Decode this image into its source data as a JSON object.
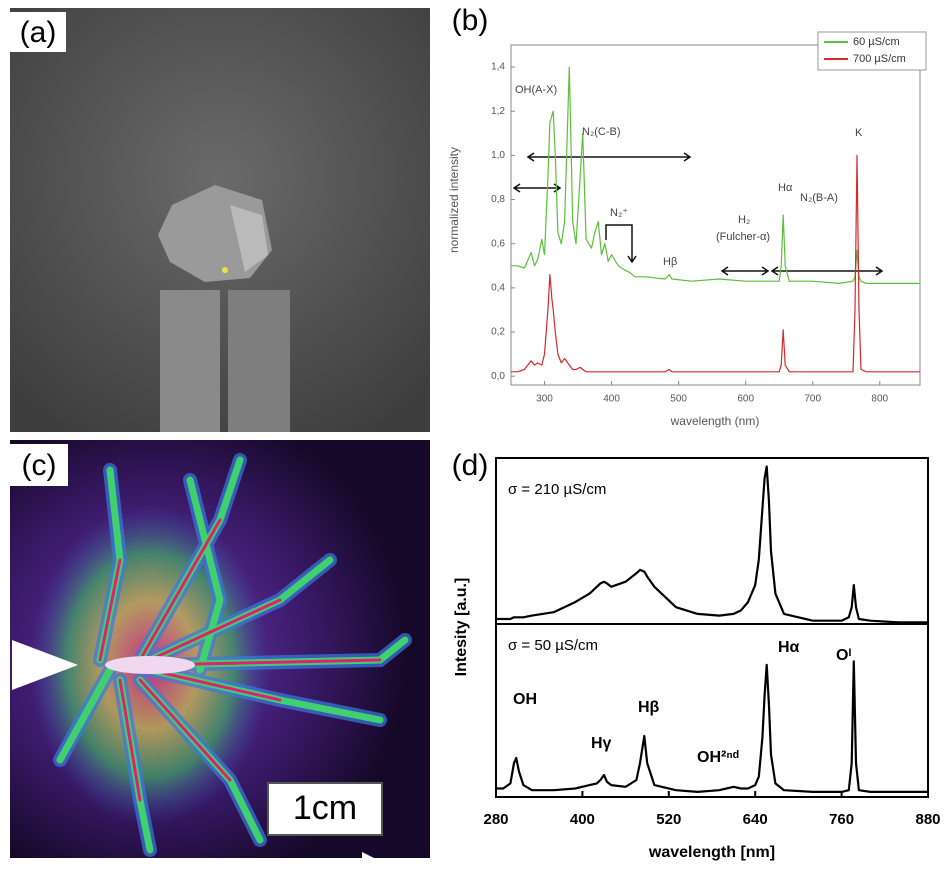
{
  "panels": {
    "a": "(a)",
    "b": "(b)",
    "c": "(c)",
    "d": "(d)"
  },
  "scale_bar": "1cm",
  "chart_data": [
    {
      "type": "line",
      "x_label": "wavelength (nm)",
      "y_label": "normalized intensity",
      "x": [
        250,
        260,
        270,
        280,
        285,
        290,
        296,
        300,
        305,
        308,
        311,
        313,
        316,
        320,
        325,
        330,
        337,
        342,
        347,
        353,
        357,
        362,
        370,
        375,
        380,
        385,
        390,
        395,
        400,
        410,
        420,
        427,
        435,
        450,
        480,
        486,
        490,
        520,
        560,
        600,
        640,
        650,
        653,
        656,
        659,
        665,
        700,
        740,
        760,
        763,
        766,
        769,
        772,
        780,
        820,
        860
      ],
      "series": [
        {
          "name": "60 µS/cm",
          "color": "#5cbf3a",
          "values": [
            0.5,
            0.5,
            0.49,
            0.56,
            0.5,
            0.53,
            0.62,
            0.55,
            0.9,
            1.15,
            1.18,
            1.2,
            1.0,
            0.65,
            0.6,
            0.7,
            1.4,
            0.7,
            0.6,
            0.9,
            1.1,
            0.62,
            0.58,
            0.65,
            0.7,
            0.55,
            0.6,
            0.52,
            0.55,
            0.5,
            0.48,
            0.47,
            0.45,
            0.45,
            0.44,
            0.46,
            0.44,
            0.43,
            0.44,
            0.43,
            0.43,
            0.43,
            0.5,
            0.73,
            0.5,
            0.43,
            0.43,
            0.42,
            0.43,
            0.45,
            0.57,
            0.45,
            0.43,
            0.42,
            0.42,
            0.42
          ]
        },
        {
          "name": "700 µS/cm",
          "color": "#d32b2b",
          "values": [
            0.02,
            0.02,
            0.03,
            0.07,
            0.05,
            0.06,
            0.05,
            0.1,
            0.3,
            0.46,
            0.35,
            0.3,
            0.2,
            0.1,
            0.06,
            0.08,
            0.05,
            0.03,
            0.03,
            0.04,
            0.03,
            0.02,
            0.02,
            0.02,
            0.02,
            0.02,
            0.02,
            0.02,
            0.02,
            0.02,
            0.02,
            0.02,
            0.02,
            0.02,
            0.02,
            0.03,
            0.02,
            0.02,
            0.02,
            0.02,
            0.02,
            0.02,
            0.05,
            0.21,
            0.05,
            0.02,
            0.02,
            0.02,
            0.02,
            0.3,
            1.0,
            0.3,
            0.03,
            0.02,
            0.02,
            0.02
          ]
        }
      ],
      "xlim": [
        250,
        860
      ],
      "ylim": [
        -0.04,
        1.5
      ],
      "xticks": [
        300,
        400,
        500,
        600,
        700,
        800
      ],
      "yticks": [
        {
          "value": 0,
          "label": "0,0"
        },
        {
          "value": 0.2,
          "label": "0,2"
        },
        {
          "value": 0.4,
          "label": "0,4"
        },
        {
          "value": 0.6,
          "label": "0,6"
        },
        {
          "value": 0.8,
          "label": "0,8"
        },
        {
          "value": 1,
          "label": "1,0"
        },
        {
          "value": 1.2,
          "label": "1,2"
        },
        {
          "value": 1.4,
          "label": "1,4"
        }
      ],
      "legend": "upper right",
      "annotations": [
        "OH(A-X)",
        "N₂(C-B)",
        "N₂⁺",
        "Hβ",
        "H₂",
        "(Fulcher-α)",
        "Hα",
        "N₂(B-A)",
        "K"
      ]
    },
    {
      "type": "line",
      "x_label": "wavelength [nm]",
      "y_label": "Intesity [a.u.]",
      "x": [
        280,
        290,
        300,
        305,
        308,
        312,
        318,
        330,
        360,
        390,
        410,
        420,
        425,
        430,
        434,
        440,
        460,
        475,
        480,
        486,
        490,
        500,
        530,
        560,
        590,
        610,
        620,
        630,
        640,
        645,
        650,
        653,
        656,
        659,
        662,
        668,
        680,
        720,
        760,
        770,
        774,
        777,
        780,
        784,
        800,
        840,
        880
      ],
      "series": [
        {
          "name": "σ = 210 µS/cm",
          "color": "#000000",
          "values": [
            1.05,
            1.05,
            1.05,
            1.06,
            1.06,
            1.06,
            1.06,
            1.07,
            1.09,
            1.15,
            1.2,
            1.24,
            1.26,
            1.27,
            1.26,
            1.24,
            1.27,
            1.32,
            1.34,
            1.33,
            1.3,
            1.24,
            1.12,
            1.08,
            1.07,
            1.08,
            1.1,
            1.15,
            1.25,
            1.4,
            1.7,
            1.88,
            1.95,
            1.75,
            1.45,
            1.2,
            1.08,
            1.04,
            1.04,
            1.06,
            1.12,
            1.25,
            1.12,
            1.05,
            1.04,
            1.03,
            1.03
          ]
        },
        {
          "name": "σ = 50 µS/cm",
          "color": "#000000",
          "values": [
            0.05,
            0.05,
            0.08,
            0.2,
            0.23,
            0.15,
            0.07,
            0.04,
            0.04,
            0.05,
            0.07,
            0.08,
            0.1,
            0.13,
            0.09,
            0.07,
            0.06,
            0.1,
            0.2,
            0.36,
            0.2,
            0.07,
            0.04,
            0.03,
            0.04,
            0.06,
            0.05,
            0.05,
            0.07,
            0.12,
            0.35,
            0.6,
            0.78,
            0.55,
            0.25,
            0.08,
            0.04,
            0.03,
            0.03,
            0.04,
            0.2,
            0.8,
            0.2,
            0.04,
            0.03,
            0.03,
            0.03
          ]
        }
      ],
      "xlim": [
        280,
        880
      ],
      "ylim": [
        0,
        2
      ],
      "xticks": [
        280,
        400,
        520,
        640,
        760,
        880
      ],
      "annotations": [
        "OH",
        "Hγ",
        "Hβ",
        "OH²ⁿᵈ",
        "Hα",
        "Oᴵ"
      ]
    }
  ]
}
